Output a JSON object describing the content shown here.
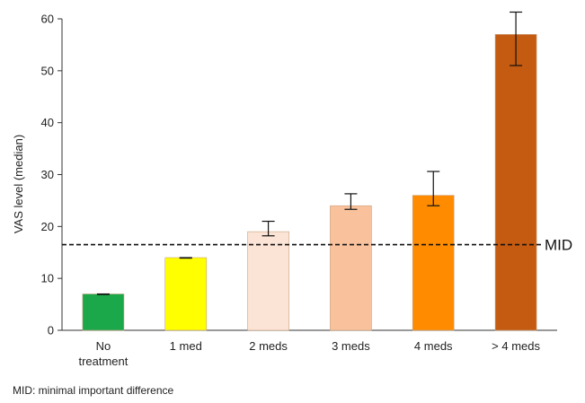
{
  "chart_data": {
    "type": "bar",
    "categories": [
      "No\ntreatment",
      "1 med",
      "2 meds",
      "3 meds",
      "4 meds",
      "> 4 meds"
    ],
    "values": [
      7,
      14,
      19,
      24,
      26,
      57
    ],
    "error_low": [
      6.9,
      13.9,
      18.2,
      23.3,
      24.0,
      51.0
    ],
    "error_high": [
      7.0,
      14.0,
      21.0,
      26.3,
      30.6,
      61.3
    ],
    "colors": [
      "#1aa84a",
      "#ffff00",
      "#fbe4d5",
      "#f9c29d",
      "#ff8c00",
      "#c55a11"
    ],
    "ylabel": "VAS level (median)",
    "ylim": [
      0,
      60
    ],
    "yticks": [
      0,
      10,
      20,
      30,
      40,
      50,
      60
    ],
    "grid": false,
    "reference_line": {
      "value": 16.5,
      "label": "MID",
      "style": "dashed"
    }
  },
  "footnote": "MID: minimal important difference"
}
